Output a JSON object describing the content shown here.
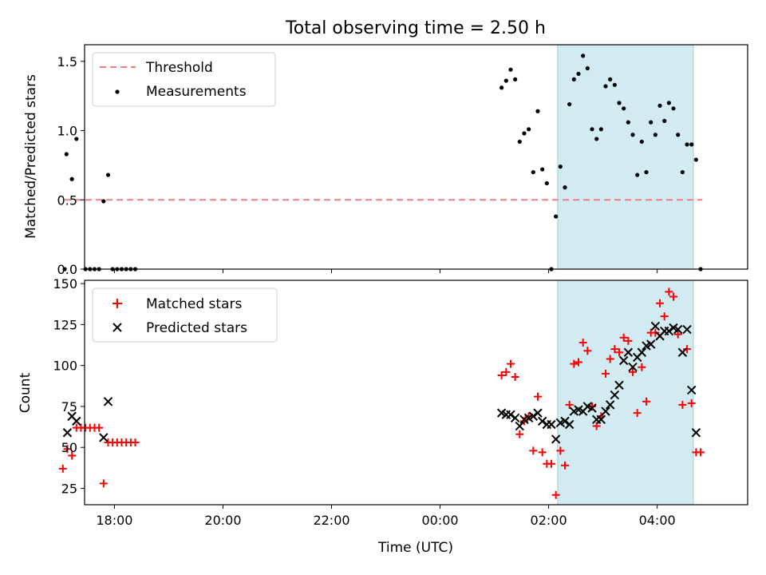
{
  "chart_data": [
    {
      "type": "scatter",
      "title": "Total observing time = 2.50 h",
      "ylabel": "Matched/Predicted stars",
      "xlabel": "",
      "xlim": [
        "17:27",
        "05:40"
      ],
      "ylim": [
        0,
        1.62
      ],
      "yticks": [
        0.0,
        0.5,
        1.0,
        1.5
      ],
      "yticklabels": [
        "0.0",
        "0.5",
        "1.0",
        "1.5"
      ],
      "shaded_interval": [
        "02:10",
        "04:40"
      ],
      "legend": {
        "position": "top-left",
        "entries": [
          "Threshold",
          "Measurements"
        ]
      },
      "threshold": {
        "name": "Threshold",
        "y": 0.5,
        "x": [
          "17:05",
          "04:50"
        ],
        "color": "#f08080"
      },
      "series": [
        {
          "name": "Measurements",
          "color": "#000000",
          "points": [
            [
              "17:05",
              0.0
            ],
            [
              "17:07",
              0.83
            ],
            [
              "17:13",
              0.65
            ],
            [
              "17:18",
              0.94
            ],
            [
              "17:28",
              0.0
            ],
            [
              "17:33",
              0.0
            ],
            [
              "17:38",
              0.0
            ],
            [
              "17:43",
              0.0
            ],
            [
              "17:48",
              0.49
            ],
            [
              "17:53",
              0.68
            ],
            [
              "17:58",
              0.0
            ],
            [
              "18:03",
              0.0
            ],
            [
              "18:08",
              0.0
            ],
            [
              "18:13",
              0.0
            ],
            [
              "18:18",
              0.0
            ],
            [
              "18:23",
              0.0
            ],
            [
              "01:08",
              1.31
            ],
            [
              "01:13",
              1.36
            ],
            [
              "01:18",
              1.44
            ],
            [
              "01:23",
              1.37
            ],
            [
              "01:28",
              0.92
            ],
            [
              "01:33",
              0.98
            ],
            [
              "01:38",
              1.01
            ],
            [
              "01:43",
              0.7
            ],
            [
              "01:48",
              1.14
            ],
            [
              "01:53",
              0.72
            ],
            [
              "01:58",
              0.62
            ],
            [
              "02:03",
              0.0
            ],
            [
              "02:08",
              0.38
            ],
            [
              "02:13",
              0.74
            ],
            [
              "02:18",
              0.59
            ],
            [
              "02:23",
              1.19
            ],
            [
              "02:28",
              1.37
            ],
            [
              "02:33",
              1.41
            ],
            [
              "02:38",
              1.54
            ],
            [
              "02:43",
              1.45
            ],
            [
              "02:48",
              1.01
            ],
            [
              "02:53",
              0.94
            ],
            [
              "02:58",
              1.01
            ],
            [
              "03:03",
              1.32
            ],
            [
              "03:08",
              1.37
            ],
            [
              "03:13",
              1.33
            ],
            [
              "03:18",
              1.2
            ],
            [
              "03:23",
              1.16
            ],
            [
              "03:28",
              1.06
            ],
            [
              "03:33",
              0.97
            ],
            [
              "03:38",
              0.68
            ],
            [
              "03:43",
              0.92
            ],
            [
              "03:48",
              0.7
            ],
            [
              "03:53",
              1.06
            ],
            [
              "03:58",
              0.97
            ],
            [
              "04:03",
              1.18
            ],
            [
              "04:08",
              1.07
            ],
            [
              "04:13",
              1.2
            ],
            [
              "04:18",
              1.16
            ],
            [
              "04:23",
              0.97
            ],
            [
              "04:28",
              0.7
            ],
            [
              "04:33",
              0.9
            ],
            [
              "04:38",
              0.9
            ],
            [
              "04:43",
              0.79
            ],
            [
              "04:48",
              0.0
            ]
          ]
        }
      ]
    },
    {
      "type": "scatter",
      "title": "",
      "ylabel": "Count",
      "xlabel": "Time (UTC)",
      "xlim": [
        "17:27",
        "05:40"
      ],
      "ylim": [
        15,
        152
      ],
      "yticks": [
        25,
        50,
        75,
        100,
        125,
        150
      ],
      "yticklabels": [
        "25",
        "50",
        "75",
        "100",
        "125",
        "150"
      ],
      "xticks": [
        "18:00",
        "20:00",
        "22:00",
        "00:00",
        "02:00",
        "04:00"
      ],
      "xticklabels": [
        "18:00",
        "20:00",
        "22:00",
        "00:00",
        "02:00",
        "04:00"
      ],
      "shaded_interval": [
        "02:10",
        "04:40"
      ],
      "legend": {
        "position": "top-left",
        "entries": [
          "Matched stars",
          "Predicted stars"
        ]
      },
      "series": [
        {
          "name": "Matched stars",
          "marker": "plus",
          "color": "#ff0000",
          "points": [
            [
              "17:03",
              37
            ],
            [
              "17:08",
              49
            ],
            [
              "17:13",
              45
            ],
            [
              "17:18",
              62
            ],
            [
              "17:23",
              62
            ],
            [
              "17:28",
              62
            ],
            [
              "17:33",
              62
            ],
            [
              "17:38",
              62
            ],
            [
              "17:43",
              62
            ],
            [
              "17:48",
              28
            ],
            [
              "17:53",
              53
            ],
            [
              "17:58",
              53
            ],
            [
              "18:03",
              53
            ],
            [
              "18:08",
              53
            ],
            [
              "18:13",
              53
            ],
            [
              "18:18",
              53
            ],
            [
              "18:23",
              53
            ],
            [
              "01:08",
              94
            ],
            [
              "01:13",
              96
            ],
            [
              "01:18",
              101
            ],
            [
              "01:23",
              93
            ],
            [
              "01:28",
              58
            ],
            [
              "01:33",
              66
            ],
            [
              "01:38",
              69
            ],
            [
              "01:43",
              48
            ],
            [
              "01:48",
              81
            ],
            [
              "01:53",
              47
            ],
            [
              "01:58",
              40
            ],
            [
              "02:03",
              40
            ],
            [
              "02:08",
              21
            ],
            [
              "02:13",
              48
            ],
            [
              "02:18",
              39
            ],
            [
              "02:23",
              76
            ],
            [
              "02:28",
              101
            ],
            [
              "02:33",
              102
            ],
            [
              "02:38",
              114
            ],
            [
              "02:43",
              109
            ],
            [
              "02:48",
              75
            ],
            [
              "02:53",
              63
            ],
            [
              "02:58",
              69
            ],
            [
              "03:03",
              95
            ],
            [
              "03:08",
              104
            ],
            [
              "03:13",
              110
            ],
            [
              "03:18",
              108
            ],
            [
              "03:23",
              117
            ],
            [
              "03:28",
              115
            ],
            [
              "03:33",
              96
            ],
            [
              "03:38",
              71
            ],
            [
              "03:43",
              99
            ],
            [
              "03:48",
              78
            ],
            [
              "03:53",
              120
            ],
            [
              "03:58",
              120
            ],
            [
              "04:03",
              138
            ],
            [
              "04:08",
              130
            ],
            [
              "04:13",
              145
            ],
            [
              "04:18",
              142
            ],
            [
              "04:23",
              119
            ],
            [
              "04:28",
              76
            ],
            [
              "04:33",
              110
            ],
            [
              "04:38",
              77
            ],
            [
              "04:43",
              47
            ],
            [
              "04:48",
              47
            ]
          ]
        },
        {
          "name": "Predicted stars",
          "marker": "x",
          "color": "#000000",
          "points": [
            [
              "17:08",
              59
            ],
            [
              "17:13",
              69
            ],
            [
              "17:18",
              66
            ],
            [
              "17:48",
              56
            ],
            [
              "17:53",
              78
            ],
            [
              "01:08",
              71
            ],
            [
              "01:13",
              70
            ],
            [
              "01:18",
              70
            ],
            [
              "01:23",
              68
            ],
            [
              "01:28",
              63
            ],
            [
              "01:33",
              67
            ],
            [
              "01:38",
              68
            ],
            [
              "01:43",
              69
            ],
            [
              "01:48",
              71
            ],
            [
              "01:53",
              66
            ],
            [
              "01:58",
              64
            ],
            [
              "02:03",
              64
            ],
            [
              "02:08",
              55
            ],
            [
              "02:13",
              65
            ],
            [
              "02:18",
              66
            ],
            [
              "02:23",
              64
            ],
            [
              "02:28",
              72
            ],
            [
              "02:33",
              73
            ],
            [
              "02:38",
              72
            ],
            [
              "02:43",
              75
            ],
            [
              "02:48",
              74
            ],
            [
              "02:53",
              67
            ],
            [
              "02:58",
              67
            ],
            [
              "03:03",
              72
            ],
            [
              "03:08",
              76
            ],
            [
              "03:13",
              82
            ],
            [
              "03:18",
              88
            ],
            [
              "03:23",
              103
            ],
            [
              "03:28",
              108
            ],
            [
              "03:33",
              99
            ],
            [
              "03:38",
              105
            ],
            [
              "03:43",
              108
            ],
            [
              "03:48",
              112
            ],
            [
              "03:53",
              113
            ],
            [
              "03:58",
              124
            ],
            [
              "04:03",
              118
            ],
            [
              "04:08",
              121
            ],
            [
              "04:13",
              121
            ],
            [
              "04:18",
              123
            ],
            [
              "04:23",
              122
            ],
            [
              "04:28",
              108
            ],
            [
              "04:33",
              122
            ],
            [
              "04:38",
              85
            ],
            [
              "04:43",
              59
            ]
          ]
        }
      ]
    }
  ]
}
